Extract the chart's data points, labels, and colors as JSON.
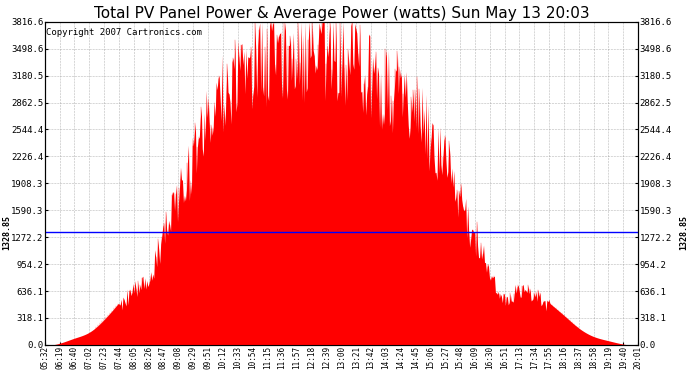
{
  "title": "Total PV Panel Power & Average Power (watts) Sun May 13 20:03",
  "copyright": "Copyright 2007 Cartronics.com",
  "y_max": 3816.6,
  "y_min": 0.0,
  "y_ticks": [
    0.0,
    318.1,
    636.1,
    954.2,
    1272.2,
    1590.3,
    1908.3,
    2226.4,
    2544.4,
    2862.5,
    3180.5,
    3498.6,
    3816.6
  ],
  "average_power": 1328.85,
  "average_label": "1328.85",
  "x_labels": [
    "05:32",
    "06:19",
    "06:40",
    "07:02",
    "07:23",
    "07:44",
    "08:05",
    "08:26",
    "08:47",
    "09:08",
    "09:29",
    "09:51",
    "10:12",
    "10:33",
    "10:54",
    "11:15",
    "11:36",
    "11:57",
    "12:18",
    "12:39",
    "13:00",
    "13:21",
    "13:42",
    "14:03",
    "14:24",
    "14:45",
    "15:06",
    "15:27",
    "15:48",
    "16:09",
    "16:30",
    "16:51",
    "17:13",
    "17:34",
    "17:55",
    "18:16",
    "18:37",
    "18:58",
    "19:19",
    "19:40",
    "20:01"
  ],
  "background_color": "#ffffff",
  "fill_color": "#ff0000",
  "line_color": "#0000ff",
  "grid_color": "#888888",
  "title_fontsize": 11,
  "copyright_fontsize": 6.5
}
